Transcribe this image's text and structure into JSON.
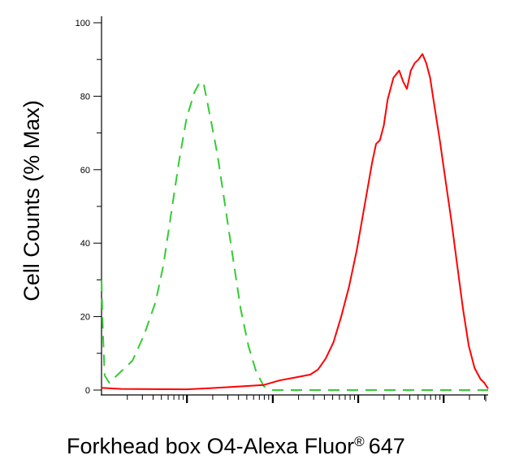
{
  "chart_data": {
    "type": "line",
    "title": "",
    "xlabel": "Forkhead box O4-Alexa Fluor",
    "xlabel_superscript": "®",
    "xlabel_suffix": "647",
    "ylabel": "Cell Counts (% Max)",
    "x_scale": "log",
    "x_tick_labels": [],
    "ylim": [
      0,
      100
    ],
    "y_ticks": [
      0,
      20,
      40,
      60,
      80,
      100
    ],
    "grid": false,
    "series": [
      {
        "color": "#33cc33",
        "line_style": "dashed",
        "points": [
          [
            0.0,
            30
          ],
          [
            0.003,
            18
          ],
          [
            0.008,
            4
          ],
          [
            0.02,
            2
          ],
          [
            0.05,
            5
          ],
          [
            0.08,
            8
          ],
          [
            0.11,
            15
          ],
          [
            0.14,
            24
          ],
          [
            0.16,
            34
          ],
          [
            0.18,
            48
          ],
          [
            0.2,
            62
          ],
          [
            0.22,
            74
          ],
          [
            0.24,
            81
          ],
          [
            0.255,
            84
          ],
          [
            0.265,
            83
          ],
          [
            0.28,
            75
          ],
          [
            0.3,
            64
          ],
          [
            0.32,
            50
          ],
          [
            0.34,
            36
          ],
          [
            0.36,
            22
          ],
          [
            0.38,
            12
          ],
          [
            0.4,
            5
          ],
          [
            0.42,
            1
          ],
          [
            0.44,
            0
          ],
          [
            1.0,
            0
          ]
        ]
      },
      {
        "color": "#ff0000",
        "line_style": "solid",
        "points": [
          [
            0.0,
            0.6
          ],
          [
            0.05,
            0.3
          ],
          [
            0.22,
            0.2
          ],
          [
            0.28,
            0.5
          ],
          [
            0.36,
            1.0
          ],
          [
            0.42,
            1.4
          ],
          [
            0.46,
            2.6
          ],
          [
            0.5,
            3.4
          ],
          [
            0.54,
            4.2
          ],
          [
            0.56,
            5.6
          ],
          [
            0.58,
            8.6
          ],
          [
            0.6,
            13
          ],
          [
            0.62,
            20
          ],
          [
            0.64,
            28
          ],
          [
            0.66,
            38
          ],
          [
            0.68,
            50
          ],
          [
            0.7,
            62
          ],
          [
            0.71,
            67
          ],
          [
            0.72,
            68
          ],
          [
            0.73,
            72
          ],
          [
            0.74,
            79
          ],
          [
            0.755,
            85
          ],
          [
            0.77,
            87
          ],
          [
            0.78,
            84
          ],
          [
            0.79,
            82
          ],
          [
            0.8,
            87
          ],
          [
            0.81,
            89
          ],
          [
            0.82,
            90
          ],
          [
            0.83,
            91.5
          ],
          [
            0.84,
            89
          ],
          [
            0.85,
            85
          ],
          [
            0.86,
            78
          ],
          [
            0.875,
            68
          ],
          [
            0.89,
            57
          ],
          [
            0.905,
            46
          ],
          [
            0.92,
            34
          ],
          [
            0.935,
            22
          ],
          [
            0.95,
            12
          ],
          [
            0.965,
            6
          ],
          [
            0.98,
            3
          ],
          [
            0.99,
            2
          ],
          [
            1.0,
            0.4
          ]
        ]
      }
    ]
  }
}
